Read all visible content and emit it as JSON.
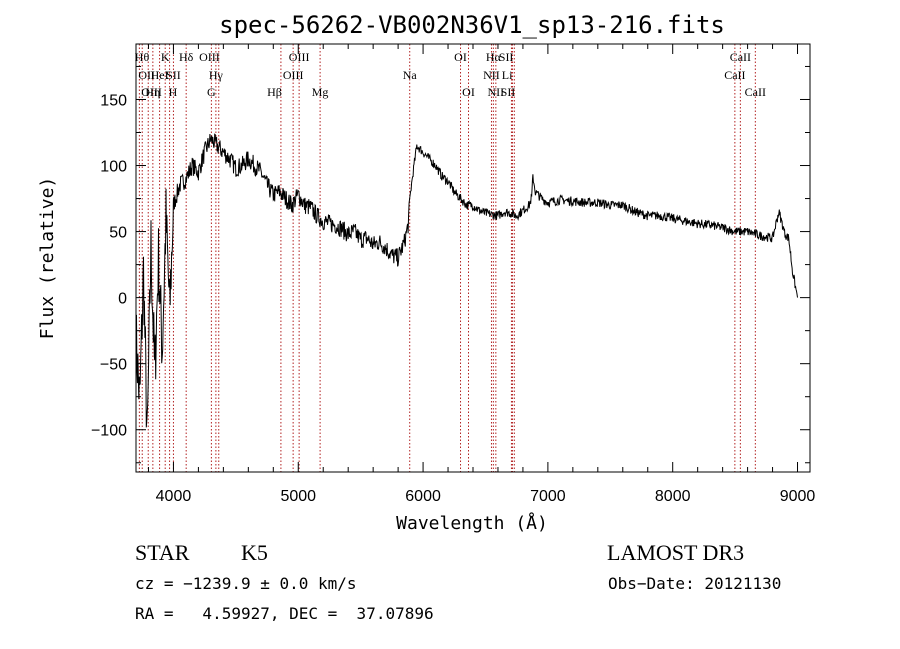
{
  "chart_data": {
    "type": "line",
    "title": "spec-56262-VB002N36V1_sp13-216.fits",
    "xlabel": "Wavelength (Å)",
    "ylabel": "Flux (relative)",
    "xlim": [
      3700,
      9100
    ],
    "ylim": [
      -132,
      192
    ],
    "x_ticks": [
      4000,
      5000,
      6000,
      7000,
      8000,
      9000
    ],
    "x_tick_labels": [
      "4000",
      "5000",
      "6000",
      "7000",
      "8000",
      "9000"
    ],
    "y_ticks": [
      -100,
      -50,
      0,
      50,
      100,
      150
    ],
    "y_tick_labels": [
      "−100",
      "−50",
      "0",
      "50",
      "100",
      "150"
    ],
    "grid": false,
    "line_color": "#000000",
    "marker_color": "#b22222",
    "series": [
      {
        "name": "flux",
        "x": [
          3700,
          3730,
          3760,
          3790,
          3820,
          3850,
          3880,
          3910,
          3940,
          3970,
          4000,
          4050,
          4100,
          4150,
          4200,
          4250,
          4300,
          4350,
          4400,
          4450,
          4500,
          4550,
          4600,
          4650,
          4700,
          4750,
          4800,
          4850,
          4900,
          4950,
          5000,
          5050,
          5100,
          5150,
          5200,
          5250,
          5300,
          5350,
          5400,
          5450,
          5500,
          5550,
          5600,
          5650,
          5700,
          5750,
          5800,
          5850,
          5880,
          5900,
          5920,
          5950,
          6000,
          6050,
          6100,
          6150,
          6200,
          6250,
          6300,
          6350,
          6400,
          6450,
          6500,
          6550,
          6600,
          6650,
          6700,
          6750,
          6800,
          6850,
          6870,
          6880,
          6900,
          6950,
          7000,
          7100,
          7200,
          7300,
          7400,
          7500,
          7600,
          7700,
          7800,
          7900,
          8000,
          8100,
          8200,
          8300,
          8400,
          8500,
          8600,
          8700,
          8800,
          8850,
          8880,
          8900,
          8930,
          8960,
          9000
        ],
        "y": [
          -30,
          -80,
          20,
          -110,
          40,
          -60,
          30,
          -40,
          60,
          -10,
          70,
          85,
          90,
          100,
          95,
          110,
          120,
          115,
          110,
          105,
          98,
          100,
          105,
          100,
          95,
          85,
          78,
          80,
          75,
          70,
          78,
          70,
          68,
          62,
          58,
          56,
          55,
          52,
          48,
          50,
          44,
          45,
          40,
          42,
          38,
          32,
          30,
          42,
          55,
          80,
          95,
          115,
          110,
          105,
          100,
          92,
          88,
          80,
          75,
          70,
          70,
          66,
          64,
          63,
          62,
          65,
          64,
          62,
          66,
          70,
          76,
          92,
          80,
          75,
          72,
          74,
          73,
          72,
          72,
          70,
          70,
          65,
          62,
          62,
          60,
          58,
          56,
          55,
          53,
          50,
          50,
          47,
          45,
          65,
          55,
          48,
          45,
          20,
          0
        ]
      }
    ],
    "spectral_lines": [
      {
        "label": "Hθ",
        "x": 3798,
        "row": 0,
        "align": "end"
      },
      {
        "label": "OII",
        "x": 3727,
        "row": 1,
        "align": "start"
      },
      {
        "label": "OIII",
        "x": 3750,
        "row": 2,
        "align": "start"
      },
      {
        "label": "Hη",
        "x": 3835,
        "row": 2,
        "align": "middle"
      },
      {
        "label": "HeI",
        "x": 3889,
        "row": 1,
        "align": "middle"
      },
      {
        "label": "K",
        "x": 3934,
        "row": 0,
        "align": "middle"
      },
      {
        "label": "SII",
        "x": 4000,
        "row": 1,
        "align": "middle"
      },
      {
        "label": "H",
        "x": 3969,
        "row": 2,
        "align": "start"
      },
      {
        "label": "Hδ",
        "x": 4102,
        "row": 0,
        "align": "middle"
      },
      {
        "label": "G",
        "x": 4304,
        "row": 2,
        "align": "middle"
      },
      {
        "label": "Hγ",
        "x": 4340,
        "row": 1,
        "align": "middle"
      },
      {
        "label": "OIII",
        "x": 4363,
        "row": 0,
        "align": "end"
      },
      {
        "label": "Hβ",
        "x": 4861,
        "row": 2,
        "align": "end"
      },
      {
        "label": "OIII",
        "x": 4959,
        "row": 1,
        "align": "middle"
      },
      {
        "label": "OIII",
        "x": 5007,
        "row": 0,
        "align": "middle"
      },
      {
        "label": "Mg",
        "x": 5175,
        "row": 2,
        "align": "middle"
      },
      {
        "label": "Na",
        "x": 5893,
        "row": 1,
        "align": "middle"
      },
      {
        "label": "OI",
        "x": 6300,
        "row": 0,
        "align": "middle"
      },
      {
        "label": "OI",
        "x": 6364,
        "row": 2,
        "align": "middle"
      },
      {
        "label": "NII",
        "x": 6548,
        "row": 1,
        "align": "middle"
      },
      {
        "label": "Hα",
        "x": 6563,
        "row": 0,
        "align": "middle"
      },
      {
        "label": "NII",
        "x": 6583,
        "row": 2,
        "align": "middle"
      },
      {
        "label": "Li",
        "x": 6708,
        "row": 1,
        "align": "end"
      },
      {
        "label": "SII",
        "x": 6716,
        "row": 0,
        "align": "end"
      },
      {
        "label": "SII",
        "x": 6731,
        "row": 2,
        "align": "end"
      },
      {
        "label": "CaII",
        "x": 8498,
        "row": 1,
        "align": "middle"
      },
      {
        "label": "CaII",
        "x": 8542,
        "row": 0,
        "align": "middle"
      },
      {
        "label": "CaII",
        "x": 8662,
        "row": 2,
        "align": "middle"
      }
    ]
  },
  "info": {
    "class_label": "STAR",
    "subclass": "K5",
    "survey": "LAMOST DR3",
    "cz_line": "cz = −1239.9 ± 0.0 km/s",
    "obs_date_line": "Obs−Date: 20121130",
    "radec_line": "RA =   4.59927, DEC =  37.07896"
  }
}
